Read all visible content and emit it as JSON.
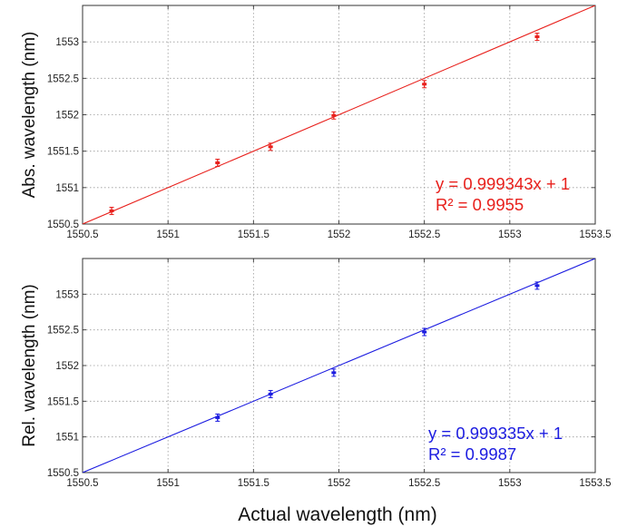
{
  "chart_data": [
    {
      "type": "scatter",
      "title": "",
      "xlabel": "Actual wavelength (nm)",
      "ylabel": "Abs. wavelength (nm)",
      "xlim": [
        1550.5,
        1553.5
      ],
      "ylim": [
        1550.5,
        1553.5
      ],
      "x_ticks": [
        "1550.5",
        "1551",
        "1551.5",
        "1552",
        "1552.5",
        "1553",
        "1553.5"
      ],
      "y_ticks": [
        "1550.5",
        "1551",
        "1551.5",
        "1552",
        "1552.5",
        "1553"
      ],
      "grid": true,
      "color": "#e8201c",
      "series": [
        {
          "x": [
            1550.67,
            1551.29,
            1551.6,
            1551.97,
            1552.5,
            1553.16
          ],
          "y": [
            1550.68,
            1551.34,
            1551.56,
            1551.99,
            1552.42,
            1553.07
          ]
        }
      ],
      "fit_line": {
        "from": [
          1550.5,
          1550.5
        ],
        "to": [
          1553.5,
          1553.5
        ]
      },
      "equation": "y = 0.999343x + 1",
      "r_squared": "R² = 0.9955"
    },
    {
      "type": "scatter",
      "title": "",
      "xlabel": "Actual wavelength (nm)",
      "ylabel": "Rel. wavelength (nm)",
      "xlim": [
        1550.5,
        1553.5
      ],
      "ylim": [
        1550.5,
        1553.5
      ],
      "x_ticks": [
        "1550.5",
        "1551",
        "1551.5",
        "1552",
        "1552.5",
        "1553",
        "1553.5"
      ],
      "y_ticks": [
        "1550.5",
        "1551",
        "1551.5",
        "1552",
        "1552.5",
        "1553"
      ],
      "grid": true,
      "color": "#1c1ce0",
      "series": [
        {
          "x": [
            1551.29,
            1551.6,
            1551.97,
            1552.5,
            1553.16
          ],
          "y": [
            1551.27,
            1551.6,
            1551.9,
            1552.47,
            1553.12
          ]
        }
      ],
      "fit_line": {
        "from": [
          1550.5,
          1550.5
        ],
        "to": [
          1553.5,
          1553.5
        ]
      },
      "equation": "y = 0.999335x + 1",
      "r_squared": "R² = 0.9987"
    }
  ],
  "x_axis_label": "Actual wavelength (nm)"
}
